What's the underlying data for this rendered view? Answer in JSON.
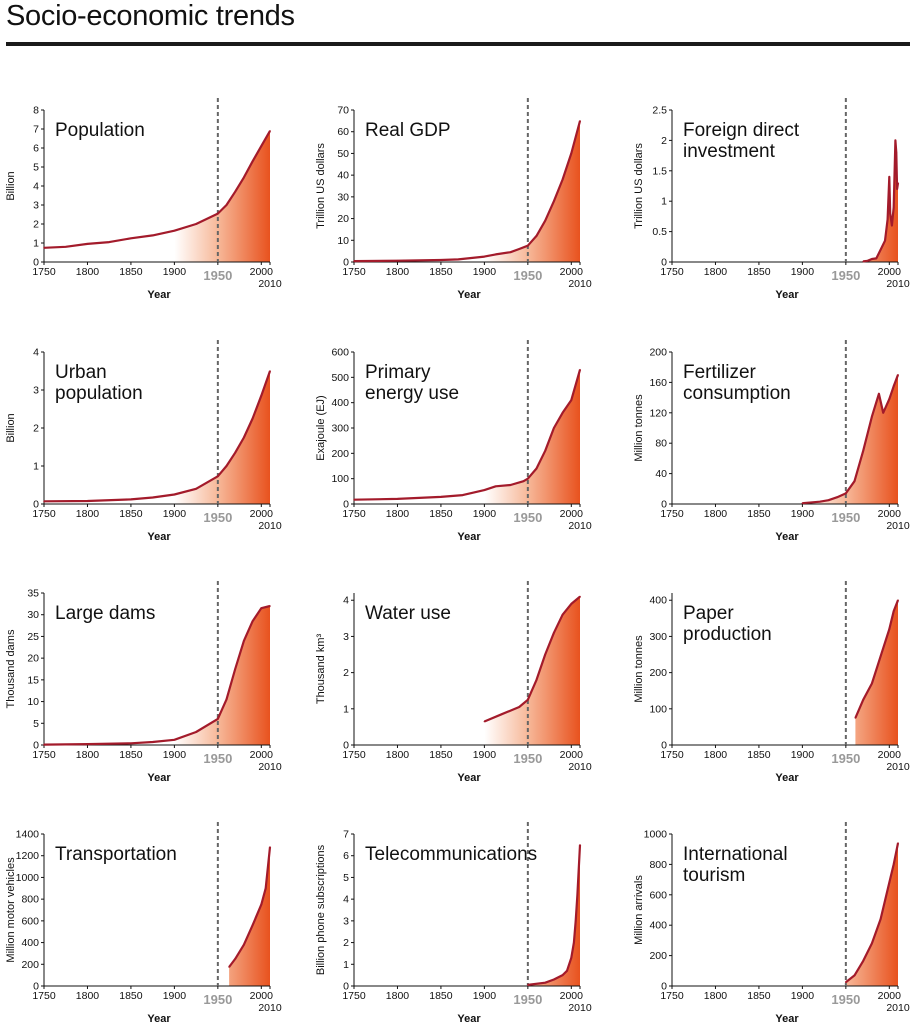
{
  "page": {
    "title": "Socio-economic trends"
  },
  "colors": {
    "line": "#a31b2b",
    "fill_dark": "#e8521e",
    "fill_light": "#ffffff",
    "marker_1950": "#666666",
    "axis": "#111111"
  },
  "chart_data": [
    {
      "type": "area",
      "title": [
        "Population"
      ],
      "xlabel": "Year",
      "ylabel": "Billion",
      "xlim": [
        1750,
        2010
      ],
      "ylim": [
        0,
        8
      ],
      "yticks": [
        0,
        1,
        2,
        3,
        4,
        5,
        6,
        7,
        8
      ],
      "xticks": [
        "1750",
        "1800",
        "1850",
        "1900",
        "1950",
        "2000"
      ],
      "x_end_label": "2010",
      "marker_year": 1950,
      "x": [
        1750,
        1775,
        1800,
        1825,
        1850,
        1875,
        1900,
        1925,
        1950,
        1960,
        1970,
        1980,
        1990,
        2000,
        2010
      ],
      "values": [
        0.75,
        0.8,
        0.95,
        1.05,
        1.25,
        1.4,
        1.65,
        2.0,
        2.55,
        3.0,
        3.7,
        4.45,
        5.3,
        6.1,
        6.9
      ]
    },
    {
      "type": "area",
      "title": [
        "Real GDP"
      ],
      "xlabel": "Year",
      "ylabel": "Trillion US dollars",
      "xlim": [
        1750,
        2010
      ],
      "ylim": [
        0,
        70
      ],
      "yticks": [
        0,
        10,
        20,
        30,
        40,
        50,
        60,
        70
      ],
      "xticks": [
        "1750",
        "1800",
        "1850",
        "1900",
        "1950",
        "2000"
      ],
      "x_end_label": "2010",
      "marker_year": 1950,
      "x": [
        1750,
        1800,
        1850,
        1870,
        1900,
        1913,
        1930,
        1940,
        1950,
        1960,
        1970,
        1980,
        1990,
        2000,
        2010
      ],
      "values": [
        0.4,
        0.6,
        0.9,
        1.2,
        2.5,
        3.5,
        4.5,
        6.0,
        7.5,
        12,
        19,
        28,
        38,
        50,
        65
      ]
    },
    {
      "type": "area",
      "title": [
        "Foreign direct",
        "investment"
      ],
      "xlabel": "Year",
      "ylabel": "Trillion US dollars",
      "xlim": [
        1750,
        2010
      ],
      "ylim": [
        0,
        2.5
      ],
      "yticks": [
        0,
        0.5,
        1,
        1.5,
        2,
        2.5
      ],
      "xticks": [
        "1750",
        "1800",
        "1850",
        "1900",
        "1950",
        "2000"
      ],
      "x_end_label": "2010",
      "marker_year": 1950,
      "x": [
        1970,
        1975,
        1980,
        1985,
        1990,
        1995,
        1998,
        2000,
        2001,
        2003,
        2005,
        2007,
        2008,
        2009,
        2010
      ],
      "values": [
        0.01,
        0.02,
        0.05,
        0.06,
        0.2,
        0.35,
        0.7,
        1.4,
        0.8,
        0.6,
        0.9,
        2.0,
        1.8,
        1.2,
        1.3
      ]
    },
    {
      "type": "area",
      "title": [
        "Urban",
        "population"
      ],
      "xlabel": "Year",
      "ylabel": "Billion",
      "xlim": [
        1750,
        2010
      ],
      "ylim": [
        0,
        4
      ],
      "yticks": [
        0,
        1,
        2,
        3,
        4
      ],
      "xticks": [
        "1750",
        "1800",
        "1850",
        "1900",
        "1950",
        "2000"
      ],
      "x_end_label": "2010",
      "marker_year": 1950,
      "x": [
        1750,
        1800,
        1850,
        1875,
        1900,
        1925,
        1950,
        1960,
        1970,
        1980,
        1990,
        2000,
        2010
      ],
      "values": [
        0.07,
        0.08,
        0.12,
        0.17,
        0.25,
        0.4,
        0.73,
        1.0,
        1.35,
        1.75,
        2.25,
        2.85,
        3.5
      ]
    },
    {
      "type": "area",
      "title": [
        "Primary",
        "energy use"
      ],
      "xlabel": "Year",
      "ylabel": "Exajoule (EJ)",
      "xlim": [
        1750,
        2010
      ],
      "ylim": [
        0,
        600
      ],
      "yticks": [
        0,
        100,
        200,
        300,
        400,
        500,
        600
      ],
      "xticks": [
        "1750",
        "1800",
        "1850",
        "1900",
        "1950",
        "2000"
      ],
      "x_end_label": "2010",
      "marker_year": 1950,
      "x": [
        1750,
        1800,
        1850,
        1875,
        1900,
        1913,
        1930,
        1945,
        1950,
        1960,
        1970,
        1980,
        1990,
        2000,
        2010
      ],
      "values": [
        17,
        20,
        28,
        35,
        55,
        70,
        75,
        90,
        100,
        140,
        210,
        300,
        360,
        410,
        530
      ]
    },
    {
      "type": "area",
      "title": [
        "Fertilizer",
        "consumption"
      ],
      "xlabel": "Year",
      "ylabel": "Million tonnes",
      "xlim": [
        1750,
        2010
      ],
      "ylim": [
        0,
        200
      ],
      "yticks": [
        0,
        40,
        80,
        120,
        160,
        200
      ],
      "xticks": [
        "1750",
        "1800",
        "1850",
        "1900",
        "1950",
        "2000"
      ],
      "x_end_label": "2010",
      "marker_year": 1950,
      "x": [
        1900,
        1920,
        1930,
        1940,
        1950,
        1960,
        1970,
        1980,
        1988,
        1993,
        2000,
        2005,
        2010
      ],
      "values": [
        1,
        3,
        5,
        9,
        14,
        30,
        70,
        115,
        145,
        120,
        138,
        155,
        170
      ]
    },
    {
      "type": "area",
      "title": [
        "Large dams"
      ],
      "xlabel": "Year",
      "ylabel": "Thousand dams",
      "xlim": [
        1750,
        2010
      ],
      "ylim": [
        0,
        35
      ],
      "yticks": [
        0,
        5,
        10,
        15,
        20,
        25,
        30,
        35
      ],
      "xticks": [
        "1750",
        "1800",
        "1850",
        "1900",
        "1950",
        "2000"
      ],
      "x_end_label": "2010",
      "marker_year": 1950,
      "x": [
        1750,
        1800,
        1850,
        1875,
        1900,
        1925,
        1950,
        1960,
        1970,
        1980,
        1990,
        2000,
        2010
      ],
      "values": [
        0.1,
        0.2,
        0.4,
        0.7,
        1.2,
        3.0,
        6.0,
        10.5,
        17.5,
        24,
        28.5,
        31.5,
        32
      ]
    },
    {
      "type": "area",
      "title": [
        "Water use"
      ],
      "xlabel": "Year",
      "ylabel": "Thousand km³",
      "xlim": [
        1750,
        2010
      ],
      "ylim": [
        0,
        4.2
      ],
      "yticks": [
        0,
        1,
        2,
        3,
        4
      ],
      "xticks": [
        "1750",
        "1800",
        "1850",
        "1900",
        "1950",
        "2000"
      ],
      "x_end_label": "2010",
      "marker_year": 1950,
      "x": [
        1900,
        1920,
        1940,
        1950,
        1960,
        1970,
        1980,
        1990,
        2000,
        2010
      ],
      "values": [
        0.65,
        0.85,
        1.05,
        1.25,
        1.8,
        2.5,
        3.1,
        3.6,
        3.9,
        4.1
      ]
    },
    {
      "type": "area",
      "title": [
        "Paper",
        "production"
      ],
      "xlabel": "Year",
      "ylabel": "Million tonnes",
      "xlim": [
        1750,
        2010
      ],
      "ylim": [
        0,
        420
      ],
      "yticks": [
        0,
        100,
        200,
        300,
        400
      ],
      "xticks": [
        "1750",
        "1800",
        "1850",
        "1900",
        "1950",
        "2000"
      ],
      "x_end_label": "2010",
      "marker_year": 1950,
      "x": [
        1961,
        1970,
        1980,
        1990,
        2000,
        2005,
        2010
      ],
      "values": [
        75,
        125,
        170,
        245,
        320,
        370,
        400
      ]
    },
    {
      "type": "area",
      "title": [
        "Transportation"
      ],
      "xlabel": "Year",
      "ylabel": "Million motor vehicles",
      "xlim": [
        1750,
        2010
      ],
      "ylim": [
        0,
        1400
      ],
      "yticks": [
        0,
        200,
        400,
        600,
        800,
        1000,
        1200,
        1400
      ],
      "xticks": [
        "1750",
        "1800",
        "1850",
        "1900",
        "1950",
        "2000"
      ],
      "x_end_label": "2010",
      "marker_year": 1950,
      "x": [
        1963,
        1970,
        1980,
        1990,
        2000,
        2005,
        2010
      ],
      "values": [
        175,
        250,
        380,
        560,
        750,
        900,
        1280
      ]
    },
    {
      "type": "area",
      "title": [
        "Telecommunications"
      ],
      "xlabel": "Year",
      "ylabel": "Billion phone subscriptions",
      "xlim": [
        1750,
        2010
      ],
      "ylim": [
        0,
        7
      ],
      "yticks": [
        0,
        1,
        2,
        3,
        4,
        5,
        6,
        7
      ],
      "xticks": [
        "1750",
        "1800",
        "1850",
        "1900",
        "1950",
        "2000"
      ],
      "x_end_label": "2010",
      "marker_year": 1950,
      "x": [
        1950,
        1970,
        1980,
        1990,
        1995,
        2000,
        2003,
        2005,
        2007,
        2010
      ],
      "values": [
        0.05,
        0.15,
        0.3,
        0.5,
        0.7,
        1.3,
        2.0,
        3.0,
        4.2,
        6.5
      ]
    },
    {
      "type": "area",
      "title": [
        "International",
        "tourism"
      ],
      "xlabel": "Year",
      "ylabel": "Million arrivals",
      "xlim": [
        1750,
        2010
      ],
      "ylim": [
        0,
        1000
      ],
      "yticks": [
        0,
        200,
        400,
        600,
        800,
        1000
      ],
      "xticks": [
        "1750",
        "1800",
        "1850",
        "1900",
        "1950",
        "2000"
      ],
      "x_end_label": "2010",
      "marker_year": 1950,
      "x": [
        1950,
        1960,
        1970,
        1980,
        1990,
        2000,
        2005,
        2010
      ],
      "values": [
        25,
        70,
        165,
        280,
        440,
        680,
        800,
        940
      ]
    }
  ]
}
